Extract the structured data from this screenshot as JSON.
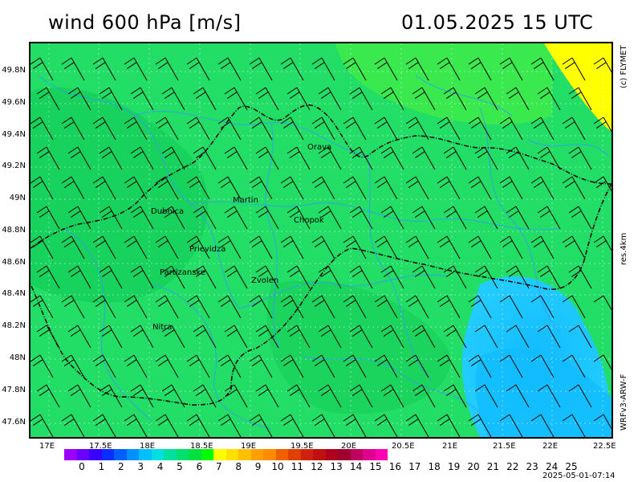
{
  "header": {
    "title": "wind 600 hPa [m/s]",
    "datetime": "01.05.2025   15 UTC"
  },
  "side_labels": {
    "copyright": "(c) FLYMET",
    "resolution": "res.4km",
    "model": "WRFv3-ARW-F"
  },
  "axes": {
    "lat_labels": [
      "49.8N",
      "49.6N",
      "49.4N",
      "49.2N",
      "49N",
      "48.8N",
      "48.6N",
      "48.4N",
      "48.2N",
      "48N",
      "47.8N",
      "47.6N"
    ],
    "lon_labels": [
      "17E",
      "17.5E",
      "18E",
      "18.5E",
      "19E",
      "19.5E",
      "20E",
      "20.5E",
      "21E",
      "21.5E",
      "22E",
      "22.5E"
    ]
  },
  "cities": [
    {
      "name": "Orava"
    },
    {
      "name": "Martin"
    },
    {
      "name": "Dubnica"
    },
    {
      "name": "Chopok"
    },
    {
      "name": "Prievidza"
    },
    {
      "name": "Partizanske"
    },
    {
      "name": "Zvolen"
    },
    {
      "name": "Nitra"
    }
  ],
  "colorbar": {
    "labels": [
      "0",
      "1",
      "2",
      "3",
      "4",
      "5",
      "6",
      "7",
      "8",
      "9",
      "10",
      "11",
      "12",
      "13",
      "14",
      "15",
      "16",
      "17",
      "18",
      "19",
      "20",
      "21",
      "22",
      "23",
      "24",
      "25"
    ],
    "colors": [
      "#9b00ff",
      "#6a00ff",
      "#3a00ff",
      "#0a2dff",
      "#0060ff",
      "#0090ff",
      "#00c0ff",
      "#00e0e0",
      "#00e0a0",
      "#00e070",
      "#00e040",
      "#00ff00",
      "#ffff00",
      "#ffe000",
      "#ffc000",
      "#ffa000",
      "#ff8c00",
      "#f06000",
      "#e04000",
      "#d02010",
      "#c01010",
      "#b00020",
      "#a00030",
      "#c00060",
      "#e00090",
      "#ff00b0"
    ]
  },
  "timestamp": "2025-05-01-07:14",
  "colors": {
    "base_field": "#22dd66",
    "dark_field": "#11cc55",
    "light_field": "#44ee44",
    "calm_field": "#22ccff",
    "calm_inner": "#11bbff",
    "strong_field": "#ffff00",
    "lines": "#3399ff",
    "border": "#000000"
  }
}
